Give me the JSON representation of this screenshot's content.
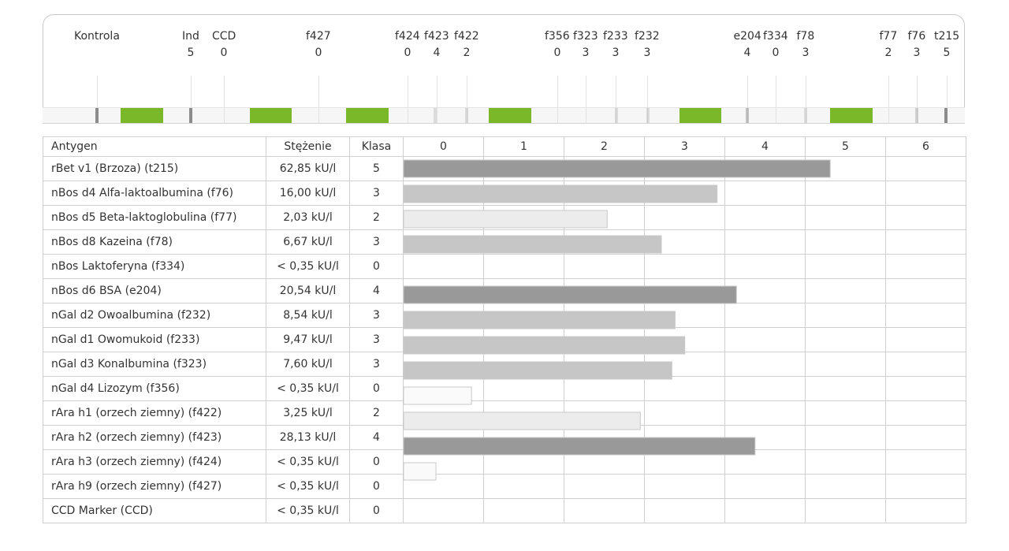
{
  "chart_data": {
    "type": "bar",
    "table_headers": {
      "antigen": "Antygen",
      "concentration": "Stężenie",
      "class": "Klasa"
    },
    "class_scale": [
      "0",
      "1",
      "2",
      "3",
      "4",
      "5",
      "6"
    ],
    "xlim": [
      0,
      6
    ],
    "rows": [
      {
        "antigen": "rBet v1 (Brzoza) (t215)",
        "concentration": "62,85 kU/l",
        "class": "5",
        "value": 5.28
      },
      {
        "antigen": "nBos d4 Alfa-laktoalbumina (f76)",
        "concentration": "16,00 kU/l",
        "class": "3",
        "value": 3.88
      },
      {
        "antigen": "nBos d5 Beta-laktoglobulina (f77)",
        "concentration": "2,03 kU/l",
        "class": "2",
        "value": 2.52
      },
      {
        "antigen": "nBos d8 Kazeina (f78)",
        "concentration": "6,67 kU/l",
        "class": "3",
        "value": 3.19
      },
      {
        "antigen": "nBos Laktoferyna (f334)",
        "concentration": "< 0,35 kU/l",
        "class": "0",
        "value": 0
      },
      {
        "antigen": "nBos d6 BSA (e204)",
        "concentration": "20,54 kU/l",
        "class": "4",
        "value": 4.12
      },
      {
        "antigen": "nGal d2 Owoalbumina (f232)",
        "concentration": "8,54 kU/l",
        "class": "3",
        "value": 3.36
      },
      {
        "antigen": "nGal d1 Owomukoid (f233)",
        "concentration": "9,47 kU/l",
        "class": "3",
        "value": 3.48
      },
      {
        "antigen": "nGal d3 Konalbumina (f323)",
        "concentration": "7,60 kU/l",
        "class": "3",
        "value": 3.32
      },
      {
        "antigen": "nGal d4 Lizozym (f356)",
        "concentration": "< 0,35 kU/l",
        "class": "0",
        "value": 0.84
      },
      {
        "antigen": "rAra h1 (orzech ziemny) (f422)",
        "concentration": "3,25 kU/l",
        "class": "2",
        "value": 2.93
      },
      {
        "antigen": "rAra h2 (orzech ziemny) (f423)",
        "concentration": "28,13 kU/l",
        "class": "4",
        "value": 4.35
      },
      {
        "antigen": "rAra h3 (orzech ziemny) (f424)",
        "concentration": "< 0,35 kU/l",
        "class": "0",
        "value": 0.4
      },
      {
        "antigen": "rAra h9 (orzech ziemny) (f427)",
        "concentration": "< 0,35 kU/l",
        "class": "0",
        "value": 0
      },
      {
        "antigen": "CCD Marker (CCD)",
        "concentration": "< 0,35 kU/l",
        "class": "0",
        "value": 0
      }
    ],
    "class_colors": {
      "0": "#fafafa",
      "2": "#ececec",
      "3": "#c6c6c6",
      "4": "#999999",
      "5": "#999999"
    },
    "grid": true
  },
  "strip": {
    "markers": [
      {
        "label": "Kontrola",
        "class": ""
      },
      {
        "label": "Ind",
        "class": "5"
      },
      {
        "label": "CCD",
        "class": "0"
      },
      {
        "label": "f427",
        "class": "0"
      },
      {
        "label": "f424",
        "class": "0"
      },
      {
        "label": "f423",
        "class": "4"
      },
      {
        "label": "f422",
        "class": "2"
      },
      {
        "label": "f356",
        "class": "0"
      },
      {
        "label": "f323",
        "class": "3"
      },
      {
        "label": "f233",
        "class": "3"
      },
      {
        "label": "f232",
        "class": "3"
      },
      {
        "label": "e204",
        "class": "4"
      },
      {
        "label": "f334",
        "class": "0"
      },
      {
        "label": "f78",
        "class": "3"
      },
      {
        "label": "f77",
        "class": "2"
      },
      {
        "label": "f76",
        "class": "3"
      },
      {
        "label": "t215",
        "class": "5"
      }
    ],
    "green_color": "#7ab829",
    "gray_color": "#8c8c8c"
  }
}
